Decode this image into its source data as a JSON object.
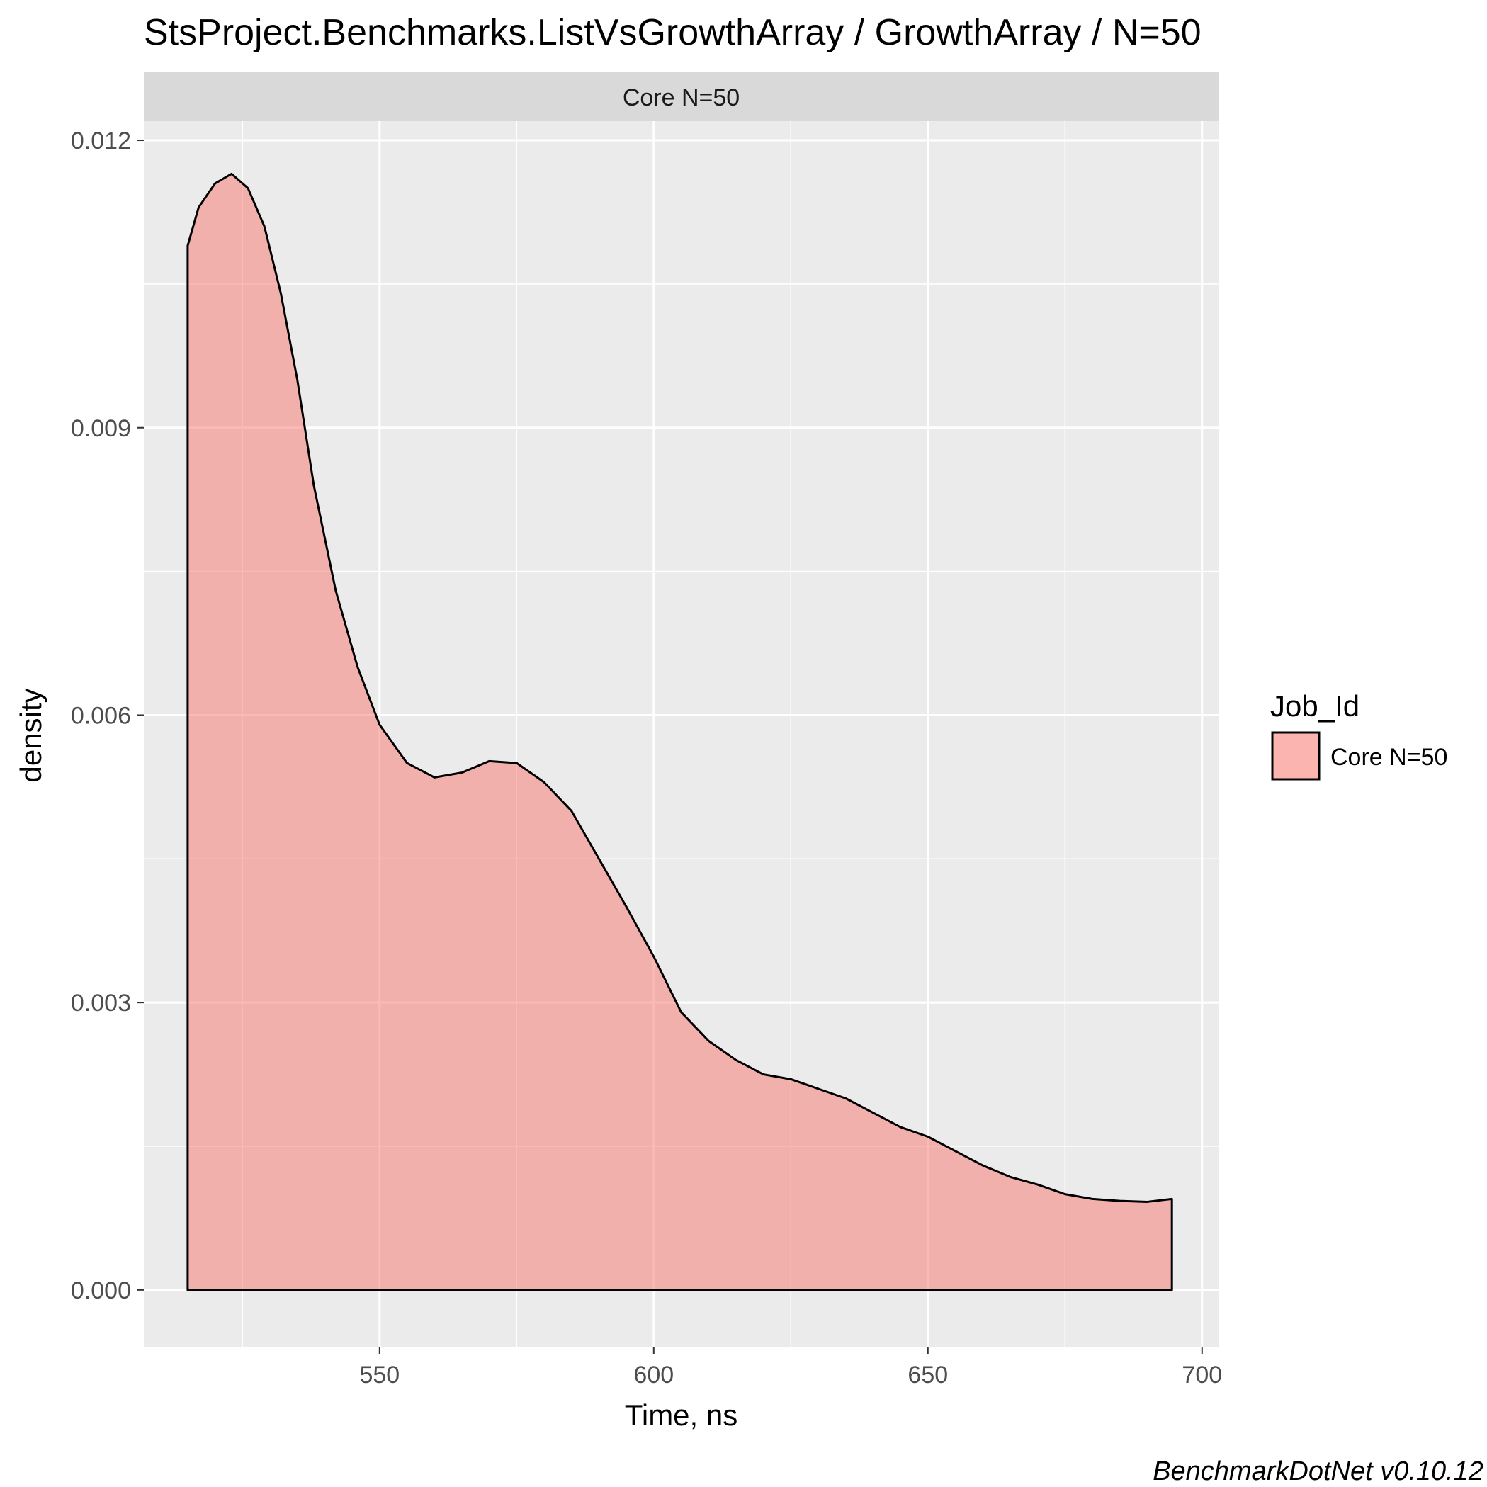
{
  "chart_data": {
    "type": "area",
    "title": "StsProject.Benchmarks.ListVsGrowthArray / GrowthArray / N=50",
    "facet_label": "Core N=50",
    "xlabel": "Time, ns",
    "ylabel": "density",
    "caption": "BenchmarkDotNet v0.10.12",
    "xlim": [
      507,
      703
    ],
    "ylim": [
      -0.0006,
      0.0122
    ],
    "x_ticks": [
      550,
      600,
      650,
      700
    ],
    "x_tick_labels": [
      "550",
      "600",
      "650",
      "700"
    ],
    "y_ticks": [
      0,
      0.003,
      0.006,
      0.009,
      0.012
    ],
    "y_tick_labels": [
      "0.000",
      "0.003",
      "0.006",
      "0.009",
      "0.012"
    ],
    "grid": true,
    "legend": {
      "title": "Job_Id",
      "entries": [
        "Core N=50"
      ],
      "position": "right"
    },
    "series": [
      {
        "name": "Core N=50",
        "color": "#F8766D",
        "x": [
          515.0,
          517.0,
          520.0,
          523.0,
          526.0,
          529.0,
          532.0,
          535.0,
          538.0,
          542.0,
          546.0,
          550.0,
          555.0,
          560.0,
          565.0,
          570.0,
          575.0,
          580.0,
          585.0,
          590.0,
          595.0,
          600.0,
          605.0,
          610.0,
          615.0,
          620.0,
          625.0,
          630.0,
          635.0,
          640.0,
          645.0,
          650.0,
          655.0,
          660.0,
          665.0,
          670.0,
          675.0,
          680.0,
          685.0,
          690.0,
          694.5
        ],
        "y": [
          0.0109,
          0.0113,
          0.01155,
          0.01165,
          0.0115,
          0.0111,
          0.0104,
          0.0095,
          0.0084,
          0.0073,
          0.0065,
          0.0059,
          0.0055,
          0.00535,
          0.0054,
          0.00552,
          0.0055,
          0.0053,
          0.005,
          0.0045,
          0.004,
          0.00348,
          0.0029,
          0.0026,
          0.0024,
          0.00225,
          0.0022,
          0.0021,
          0.002,
          0.00185,
          0.0017,
          0.0016,
          0.00145,
          0.0013,
          0.00118,
          0.0011,
          0.001,
          0.00095,
          0.00093,
          0.00092,
          0.00095
        ]
      }
    ]
  }
}
